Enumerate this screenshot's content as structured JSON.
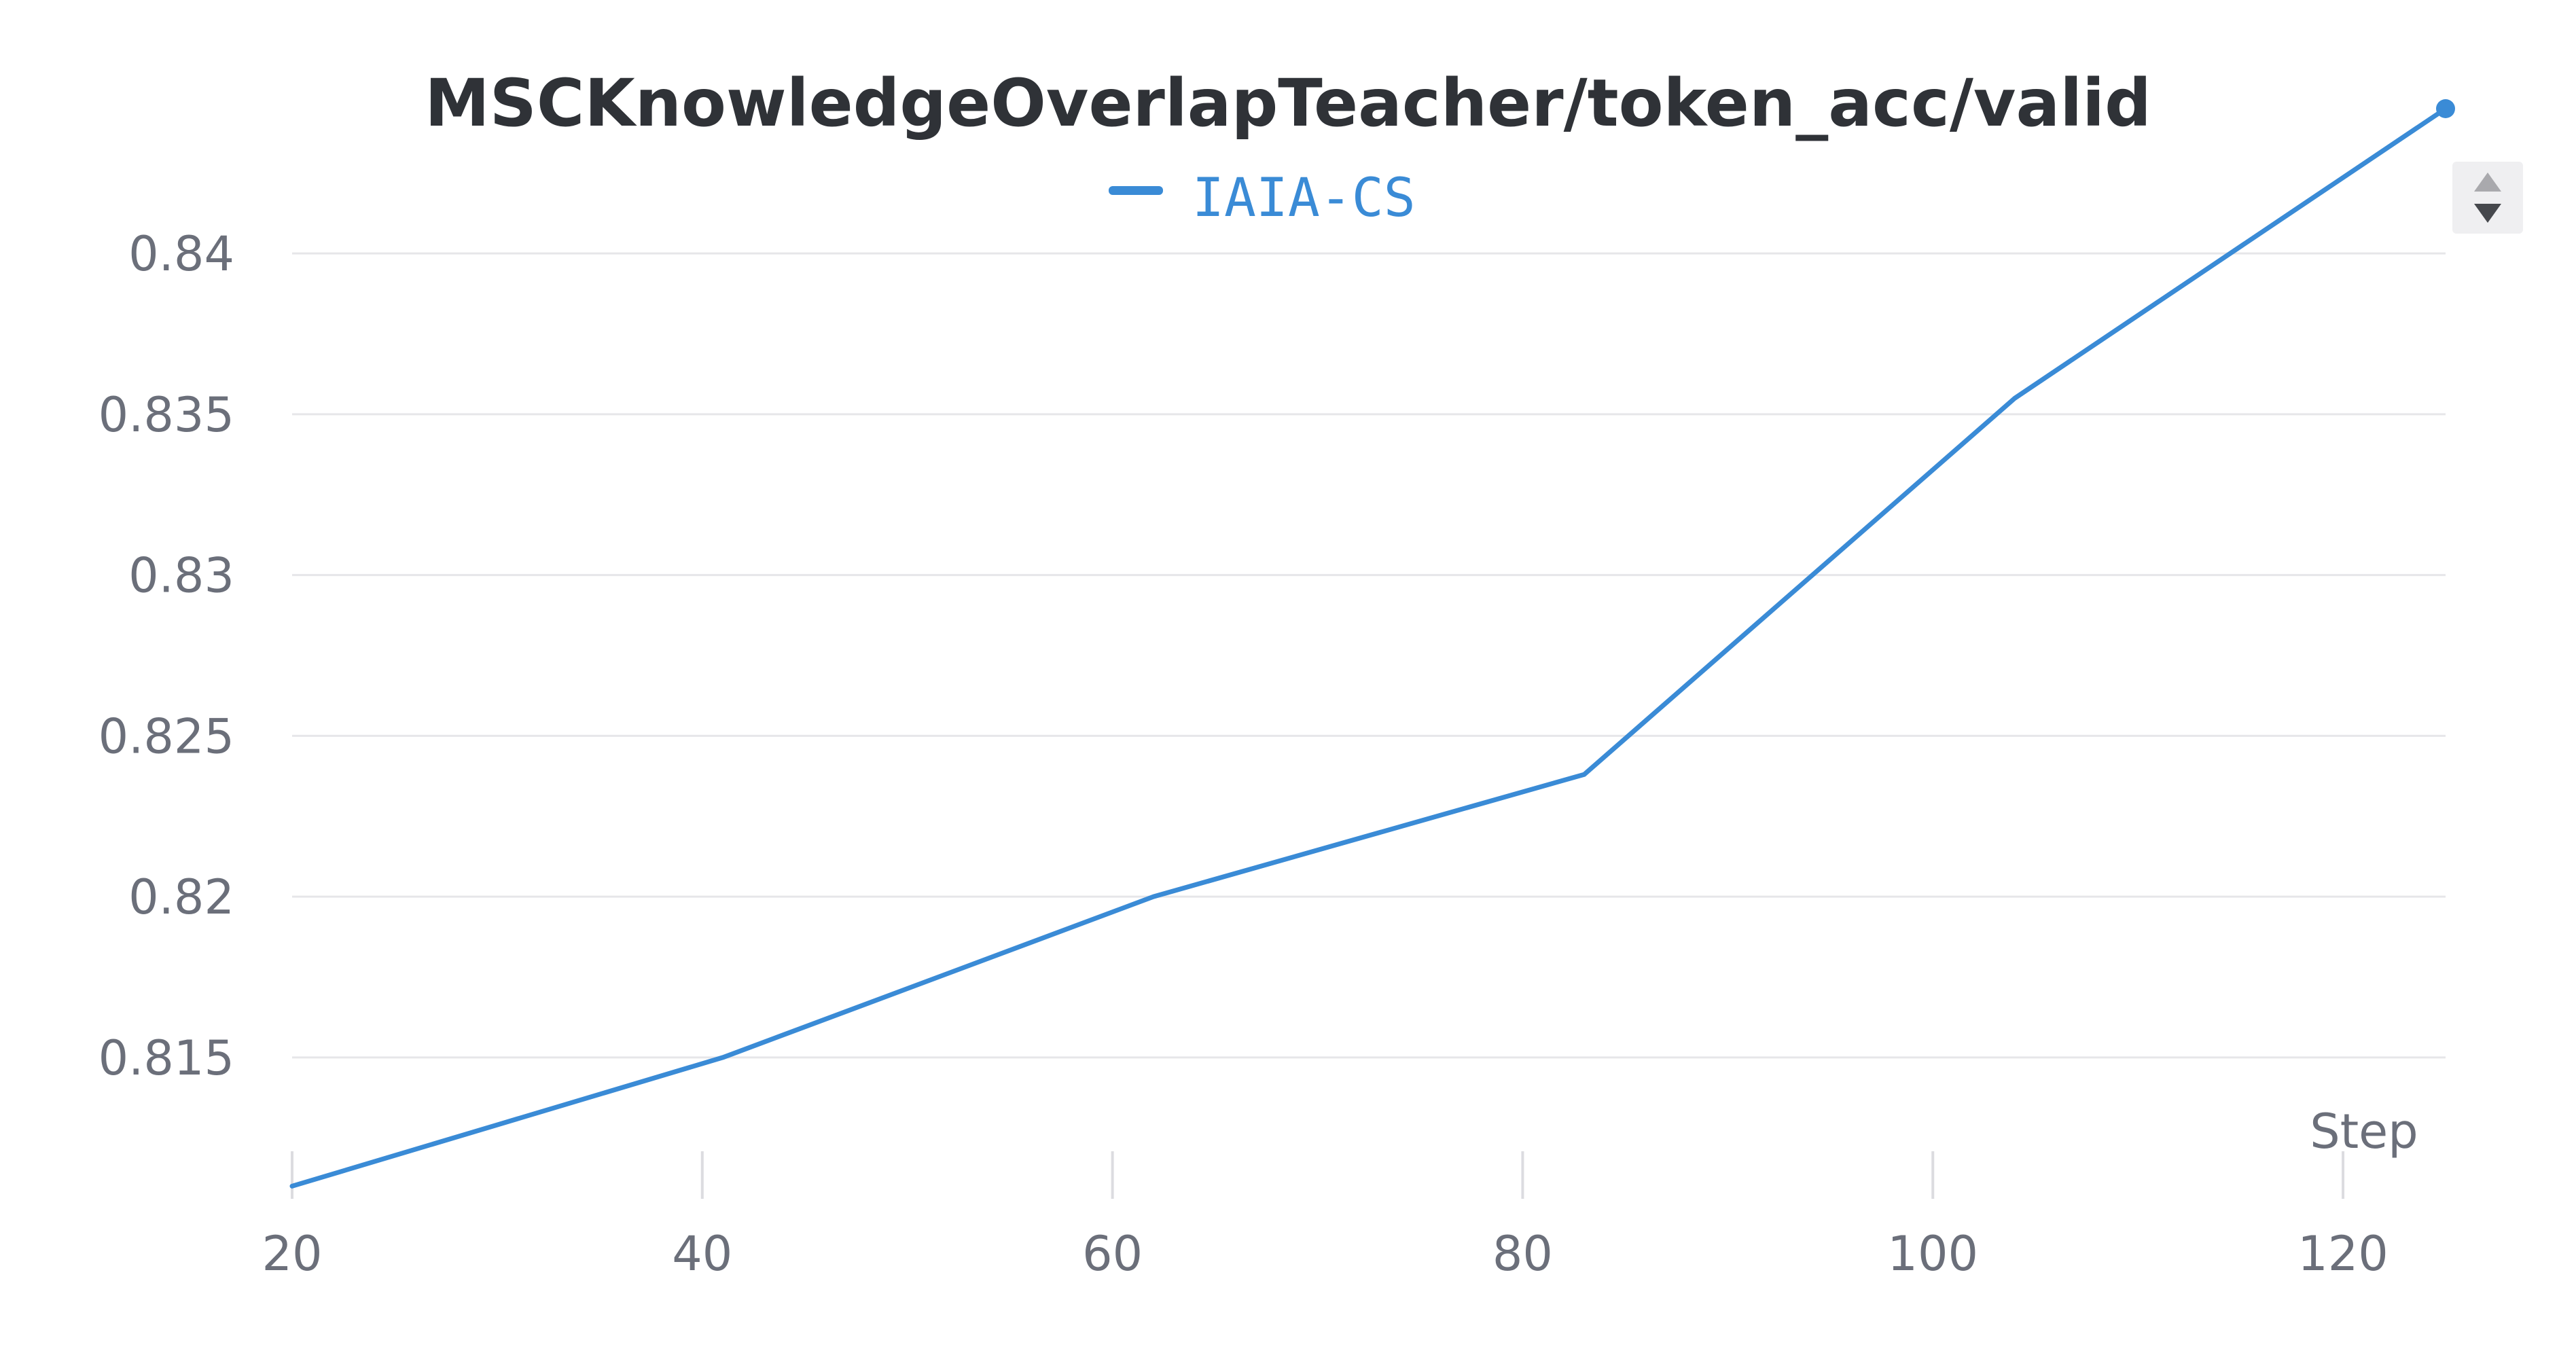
{
  "colors": {
    "series": "#3a8bd6",
    "title": "#2f3237",
    "ticks": "#6b6f7a",
    "grid": "#e6e6e9"
  },
  "chart_data": {
    "type": "line",
    "title": "MSCKnowledgeOverlapTeacher/token_acc/valid",
    "xlabel": "Step",
    "ylabel": "",
    "xlim": [
      20,
      125
    ],
    "ylim": [
      0.8105,
      0.8445
    ],
    "x_ticks": [
      20,
      40,
      60,
      80,
      100,
      120
    ],
    "x_tick_labels": [
      "20",
      "40",
      "60",
      "80",
      "100",
      "120"
    ],
    "y_ticks": [
      0.815,
      0.82,
      0.825,
      0.83,
      0.835,
      0.84
    ],
    "y_tick_labels": [
      "0.815",
      "0.82",
      "0.825",
      "0.83",
      "0.835",
      "0.84"
    ],
    "grid": "horizontal",
    "legend_position": "top-center",
    "series": [
      {
        "name": "IAIA-CS",
        "color": "#3a8bd6",
        "x": [
          20,
          41,
          62,
          83,
          104,
          125
        ],
        "y": [
          0.811,
          0.815,
          0.82,
          0.8238,
          0.8355,
          0.8445
        ]
      }
    ]
  },
  "controls": {
    "legend_scroll_up": "arrow-up-icon",
    "legend_scroll_down": "arrow-down-icon"
  }
}
